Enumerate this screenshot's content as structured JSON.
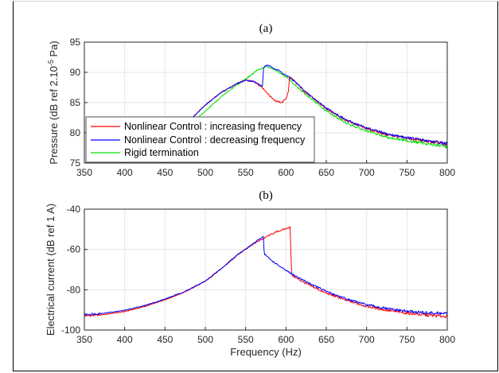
{
  "chart_data": [
    {
      "type": "line",
      "title": "(a)",
      "xlabel": "",
      "ylabel": "Pressure (dB ref 2.10",
      "ylabel_sup": "-5",
      "ylabel_tail": " Pa)",
      "xlim": [
        350,
        800
      ],
      "ylim": [
        75,
        95
      ],
      "xticks": [
        350,
        400,
        450,
        500,
        550,
        600,
        650,
        700,
        750,
        800
      ],
      "yticks": [
        75,
        80,
        85,
        90,
        95
      ],
      "grid": true,
      "legend_position": "bottom-left",
      "series": [
        {
          "name": "Nonlinear Control : increasing frequency",
          "color": "#ff0000",
          "x": [
            465,
            480,
            500,
            520,
            540,
            550,
            560,
            570,
            580,
            588,
            595,
            600,
            603,
            604,
            605,
            610,
            625,
            650,
            675,
            700,
            725,
            750,
            775,
            800
          ],
          "y": [
            79.8,
            82.0,
            84.6,
            86.7,
            88.2,
            88.7,
            88.5,
            87.6,
            86.1,
            85.2,
            85.0,
            85.7,
            86.8,
            88.7,
            89.3,
            88.6,
            86.6,
            84.0,
            82.0,
            80.7,
            79.7,
            79.1,
            78.6,
            78.1
          ]
        },
        {
          "name": "Nonlinear Control : decreasing frequency",
          "color": "#0000ff",
          "x": [
            465,
            480,
            500,
            520,
            540,
            550,
            560,
            568,
            571,
            572,
            575,
            580,
            590,
            600,
            610,
            625,
            650,
            675,
            700,
            725,
            750,
            775,
            800
          ],
          "y": [
            79.8,
            82.0,
            84.6,
            86.7,
            88.2,
            88.7,
            88.5,
            87.9,
            87.6,
            90.7,
            91.2,
            91.0,
            90.4,
            89.5,
            88.6,
            86.7,
            84.1,
            82.1,
            80.8,
            79.8,
            79.2,
            78.7,
            78.2
          ]
        },
        {
          "name": "Rigid termination",
          "color": "#00e000",
          "x": [
            490,
            500,
            520,
            540,
            555,
            565,
            575,
            585,
            600,
            625,
            650,
            675,
            700,
            725,
            750,
            775,
            800
          ],
          "y": [
            82.4,
            83.6,
            86.0,
            88.0,
            89.4,
            90.4,
            90.9,
            90.6,
            89.2,
            86.3,
            83.6,
            81.6,
            80.3,
            79.3,
            78.7,
            78.2,
            77.7
          ]
        }
      ]
    },
    {
      "type": "line",
      "title": "(b)",
      "xlabel": "Frequency (Hz)",
      "ylabel": "Electrical current (dB ref 1 A)",
      "xlim": [
        350,
        800
      ],
      "ylim": [
        -100,
        -40
      ],
      "xticks": [
        350,
        400,
        450,
        500,
        550,
        600,
        650,
        700,
        750,
        800
      ],
      "yticks": [
        -100,
        -80,
        -60,
        -40
      ],
      "grid": true,
      "series": [
        {
          "name": "increasing frequency",
          "color": "#ff0000",
          "x": [
            350,
            375,
            400,
            425,
            450,
            475,
            500,
            520,
            540,
            555,
            570,
            580,
            590,
            600,
            605,
            606,
            607,
            610,
            625,
            650,
            675,
            700,
            725,
            750,
            775,
            800
          ],
          "y": [
            -93.0,
            -92.3,
            -90.8,
            -88.3,
            -85.0,
            -81.0,
            -75.8,
            -69.5,
            -62.5,
            -58.3,
            -55.0,
            -52.8,
            -51.0,
            -49.7,
            -48.8,
            -60.0,
            -72.5,
            -73.5,
            -77.0,
            -81.7,
            -85.3,
            -88.2,
            -90.2,
            -91.6,
            -92.6,
            -93.2
          ]
        },
        {
          "name": "decreasing frequency",
          "color": "#0000ff",
          "x": [
            350,
            375,
            400,
            425,
            450,
            475,
            500,
            520,
            540,
            555,
            565,
            570,
            572,
            573,
            575,
            580,
            590,
            600,
            610,
            625,
            650,
            675,
            700,
            725,
            750,
            775,
            800
          ],
          "y": [
            -92.3,
            -91.6,
            -90.2,
            -87.8,
            -84.6,
            -80.8,
            -75.7,
            -69.5,
            -62.6,
            -58.4,
            -55.5,
            -54.0,
            -53.5,
            -62.3,
            -62.8,
            -64.8,
            -67.8,
            -70.5,
            -72.8,
            -76.0,
            -80.8,
            -84.6,
            -87.5,
            -89.4,
            -90.7,
            -91.5,
            -91.8
          ]
        }
      ]
    }
  ]
}
